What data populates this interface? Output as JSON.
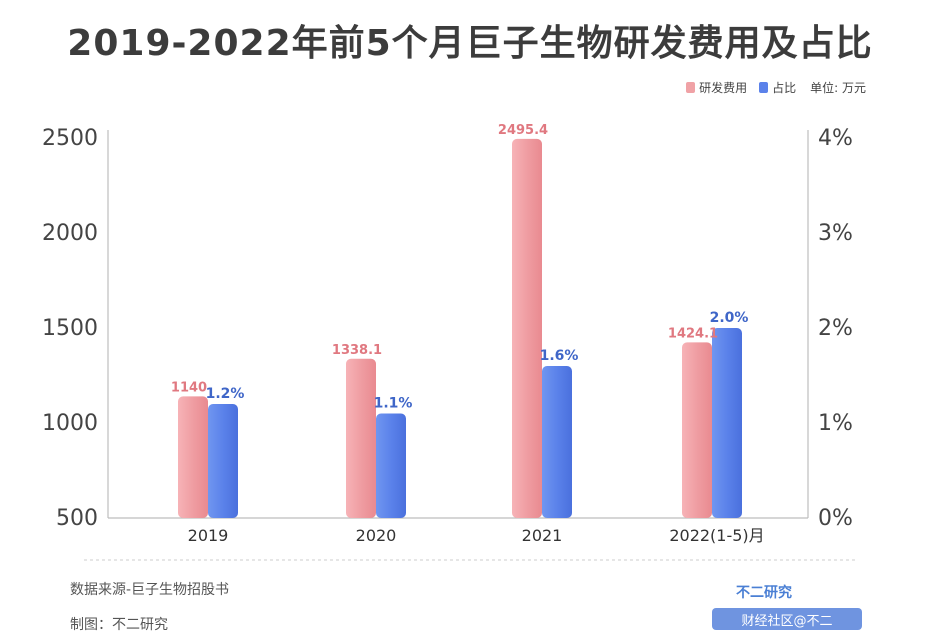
{
  "title": "2019-2022年前5个月巨子生物研发费用及占比",
  "legend": {
    "items": [
      {
        "label": "研发费用",
        "color": "#f0a2a6"
      },
      {
        "label": "占比",
        "color": "#5b82ea"
      }
    ],
    "unit": "单位: 万元"
  },
  "chart_data": {
    "type": "bar",
    "categories": [
      "2019",
      "2020",
      "2021",
      "2022(1-5)月"
    ],
    "series": [
      {
        "name": "研发费用",
        "axis": "left",
        "values": [
          1140,
          1338.1,
          2495.4,
          1424.1
        ],
        "labels": [
          "1140",
          "1338.1",
          "2495.4",
          "1424.1"
        ],
        "color": "#f0a2a6",
        "label_color": "#e07880"
      },
      {
        "name": "占比",
        "axis": "right",
        "values": [
          1.2,
          1.1,
          1.6,
          2.0
        ],
        "labels": [
          "1.2%",
          "1.1%",
          "1.6%",
          "2.0%"
        ],
        "color": "#5b82ea",
        "label_color": "#3f66c8"
      }
    ],
    "y_left": {
      "ylim": [
        500,
        2500
      ],
      "ticks": [
        "500",
        "1000",
        "1500",
        "2000",
        "2500"
      ],
      "values": [
        500,
        1000,
        1500,
        2000,
        2500
      ]
    },
    "y_right": {
      "ylim": [
        0,
        4
      ],
      "ticks": [
        "0%",
        "1%",
        "2%",
        "3%",
        "4%"
      ],
      "values": [
        0,
        1,
        2,
        3,
        4
      ]
    },
    "grid": false
  },
  "footer": {
    "source": "数据来源-巨子生物招股书",
    "author": "制图：不二研究"
  },
  "brand": "不二研究",
  "badge": "财经社区@不二"
}
